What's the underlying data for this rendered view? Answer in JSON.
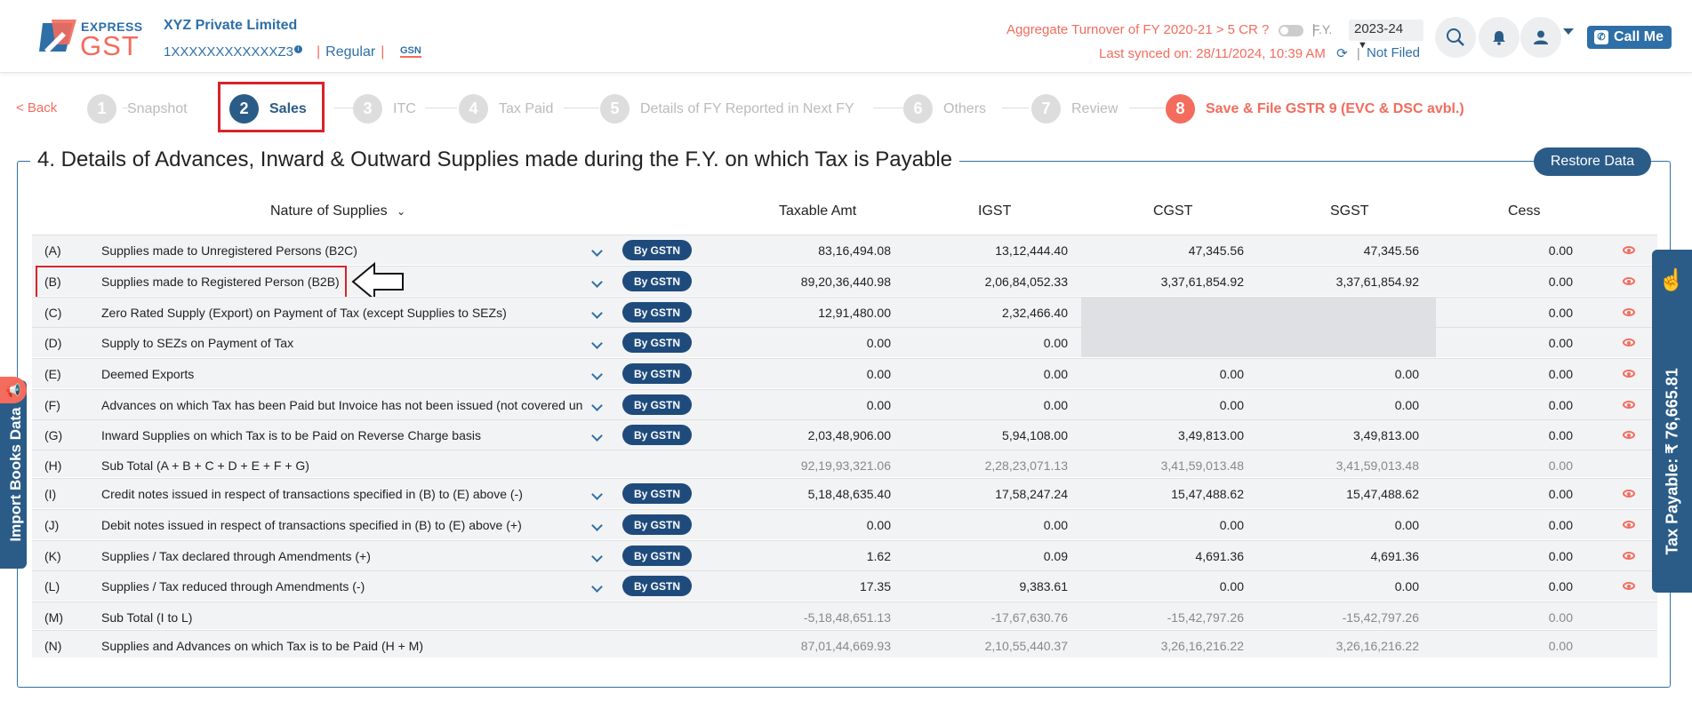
{
  "brand": {
    "line1": "EXPRESS",
    "line2": "GST"
  },
  "header": {
    "company": "XYZ Private Limited",
    "gstin": "1XXXXXXXXXXXXZ3",
    "info_icon": "i",
    "sep": "|",
    "registration_type": "Regular",
    "gsn_badge": "GSN",
    "aggregate_turnover": "Aggregate Turnover of FY 2020-21 > 5 CR ?",
    "fy_label": "F.Y.",
    "fy_value": "2023-24",
    "last_synced": "Last synced on: 28/11/2024, 10:39 AM",
    "filing_status": "Not Filed",
    "call_me": "Call Me"
  },
  "icons": {
    "bell": "bell-icon",
    "user": "user-icon",
    "search": "gstn-search-icon",
    "phone": "phone-icon",
    "refresh": "refresh-icon"
  },
  "stepper": {
    "back": "< Back",
    "steps": [
      {
        "n": "1",
        "label": "Snapshot"
      },
      {
        "n": "2",
        "label": "Sales"
      },
      {
        "n": "3",
        "label": "ITC"
      },
      {
        "n": "4",
        "label": "Tax Paid"
      },
      {
        "n": "5",
        "label": "Details of FY Reported in Next FY"
      },
      {
        "n": "6",
        "label": "Others"
      },
      {
        "n": "7",
        "label": "Review"
      },
      {
        "n": "8",
        "label": "Save & File GSTR 9 (EVC & DSC avbl.)"
      }
    ],
    "active_step": 2
  },
  "section": {
    "title": "4. Details of Advances, Inward & Outward Supplies made during the F.Y. on which Tax is Payable",
    "restore_button": "Restore Data"
  },
  "table": {
    "headers": [
      "Nature of Supplies",
      "Taxable Amt",
      "IGST",
      "CGST",
      "SGST",
      "Cess"
    ],
    "by_gstn_label": "By GSTN",
    "rows": [
      {
        "code": "(A)",
        "label": "Supplies made to Unregistered Persons (B2C)",
        "taxable": "83,16,494.08",
        "igst": "13,12,444.40",
        "cgst": "47,345.56",
        "sgst": "47,345.56",
        "cess": "0.00"
      },
      {
        "code": "(B)",
        "label": "Supplies made to Registered Person (B2B)",
        "taxable": "89,20,36,440.98",
        "igst": "2,06,84,052.33",
        "cgst": "3,37,61,854.92",
        "sgst": "3,37,61,854.92",
        "cess": "0.00"
      },
      {
        "code": "(C)",
        "label": "Zero Rated Supply (Export) on Payment of Tax (except Supplies to SEZs)",
        "taxable": "12,91,480.00",
        "igst": "2,32,466.40",
        "cgst": "",
        "sgst": "",
        "cess": "0.00"
      },
      {
        "code": "(D)",
        "label": "Supply to SEZs on Payment of Tax",
        "taxable": "0.00",
        "igst": "0.00",
        "cgst": "",
        "sgst": "",
        "cess": "0.00"
      },
      {
        "code": "(E)",
        "label": "Deemed Exports",
        "taxable": "0.00",
        "igst": "0.00",
        "cgst": "0.00",
        "sgst": "0.00",
        "cess": "0.00"
      },
      {
        "code": "(F)",
        "label": "Advances on which Tax has been Paid but Invoice has not been issued (not covered under",
        "taxable": "0.00",
        "igst": "0.00",
        "cgst": "0.00",
        "sgst": "0.00",
        "cess": "0.00"
      },
      {
        "code": "(G)",
        "label": "Inward Supplies on which Tax is to be Paid on Reverse Charge basis",
        "taxable": "2,03,48,906.00",
        "igst": "5,94,108.00",
        "cgst": "3,49,813.00",
        "sgst": "3,49,813.00",
        "cess": "0.00"
      },
      {
        "code": "(H)",
        "label": "Sub Total (A + B + C + D + E + F + G)",
        "taxable": "92,19,93,321.06",
        "igst": "2,28,23,071.13",
        "cgst": "3,41,59,013.48",
        "sgst": "3,41,59,013.48",
        "cess": "0.00"
      },
      {
        "code": "(I)",
        "label": "Credit notes issued in respect of transactions specified in (B) to (E) above (-)",
        "taxable": "5,18,48,635.40",
        "igst": "17,58,247.24",
        "cgst": "15,47,488.62",
        "sgst": "15,47,488.62",
        "cess": "0.00"
      },
      {
        "code": "(J)",
        "label": "Debit notes issued in respect of transactions specified in (B) to (E) above (+)",
        "taxable": "0.00",
        "igst": "0.00",
        "cgst": "0.00",
        "sgst": "0.00",
        "cess": "0.00"
      },
      {
        "code": "(K)",
        "label": "Supplies / Tax declared through Amendments (+)",
        "taxable": "1.62",
        "igst": "0.09",
        "cgst": "4,691.36",
        "sgst": "4,691.36",
        "cess": "0.00"
      },
      {
        "code": "(L)",
        "label": "Supplies / Tax reduced through Amendments (-)",
        "taxable": "17.35",
        "igst": "9,383.61",
        "cgst": "0.00",
        "sgst": "0.00",
        "cess": "0.00"
      },
      {
        "code": "(M)",
        "label": "Sub Total (I to L)",
        "taxable": "-5,18,48,651.13",
        "igst": "-17,67,630.76",
        "cgst": "-15,42,797.26",
        "sgst": "-15,42,797.26",
        "cess": "0.00"
      },
      {
        "code": "(N)",
        "label": "Supplies and Advances on which Tax is to be Paid (H + M)",
        "taxable": "87,01,44,669.93",
        "igst": "2,10,55,440.37",
        "cgst": "3,26,16,216.22",
        "sgst": "3,26,16,216.22",
        "cess": "0.00"
      }
    ]
  },
  "side": {
    "import_books": "Import Books Data",
    "tax_payable": "Tax Payable: ₹ 76,665.81"
  },
  "colors": {
    "primary": "#2b5c88",
    "accent": "#f36c5d",
    "highlight_red": "#d8232a"
  }
}
